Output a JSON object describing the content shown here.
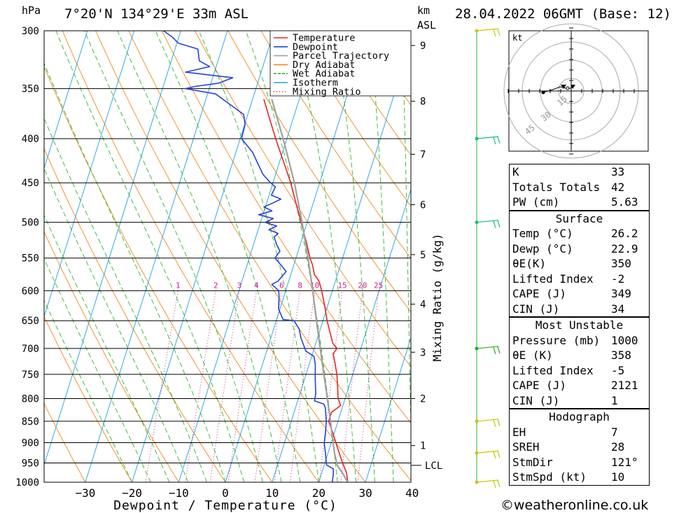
{
  "header": {
    "location": "7°20'N 134°29'E 33m ASL",
    "datetime": "28.04.2022 06GMT (Base: 12)",
    "pressure_unit": "hPa",
    "height_unit_km": "km",
    "height_unit_asl": "ASL"
  },
  "chart_data": {
    "type": "line",
    "subtype": "skew-t log-p",
    "xlabel": "Dewpoint / Temperature (°C)",
    "ylabel_right": "Mixing Ratio (g/kg)",
    "x_ticks": [
      -30,
      -20,
      -10,
      0,
      10,
      20,
      30,
      40
    ],
    "pressure_levels": [
      300,
      350,
      400,
      450,
      500,
      550,
      600,
      650,
      700,
      750,
      800,
      850,
      900,
      950,
      1000
    ],
    "height_ticks_km": [
      {
        "label": "1",
        "p": 907
      },
      {
        "label": "2",
        "p": 800
      },
      {
        "label": "3",
        "p": 707
      },
      {
        "label": "4",
        "p": 622
      },
      {
        "label": "5",
        "p": 545
      },
      {
        "label": "6",
        "p": 477
      },
      {
        "label": "7",
        "p": 417
      },
      {
        "label": "8",
        "p": 362
      },
      {
        "label": "9",
        "p": 312
      }
    ],
    "lcl_label": "LCL",
    "lcl_pressure": 956,
    "mixing_ratio_labels": [
      "1",
      "2",
      "3",
      "4",
      "6",
      "8",
      "10",
      "15",
      "20",
      "25"
    ],
    "mixing_ratio_values": [
      1,
      2,
      3,
      4,
      6,
      8,
      10,
      15,
      20,
      25
    ],
    "legend": [
      {
        "name": "Temperature",
        "color": "#ee2222",
        "style": "solid"
      },
      {
        "name": "Dewpoint",
        "color": "#2244dd",
        "style": "solid"
      },
      {
        "name": "Parcel Trajectory",
        "color": "#a0a0a0",
        "style": "solid"
      },
      {
        "name": "Dry Adiabat",
        "color": "#f08a1c",
        "style": "solid"
      },
      {
        "name": "Wet Adiabat",
        "color": "#2db82d",
        "style": "dashed"
      },
      {
        "name": "Isotherm",
        "color": "#1e9fe0",
        "style": "solid"
      },
      {
        "name": "Mixing Ratio",
        "color": "#d0208c",
        "style": "dotted"
      }
    ],
    "series": [
      {
        "name": "Temperature",
        "points": [
          [
            1000,
            26.2
          ],
          [
            975,
            25.3
          ],
          [
            950,
            23.8
          ],
          [
            925,
            22.4
          ],
          [
            900,
            21.0
          ],
          [
            875,
            19.6
          ],
          [
            850,
            18.0
          ],
          [
            830,
            18.0
          ],
          [
            815,
            19.5
          ],
          [
            800,
            18.5
          ],
          [
            775,
            17.6
          ],
          [
            750,
            16.6
          ],
          [
            725,
            15.3
          ],
          [
            710,
            14.4
          ],
          [
            700,
            14.9
          ],
          [
            690,
            13.6
          ],
          [
            675,
            12.6
          ],
          [
            650,
            10.9
          ],
          [
            625,
            9.4
          ],
          [
            600,
            7.7
          ],
          [
            585,
            6.5
          ],
          [
            575,
            5.1
          ],
          [
            560,
            4.0
          ],
          [
            550,
            3.0
          ],
          [
            530,
            1.4
          ],
          [
            500,
            -1.3
          ],
          [
            475,
            -3.7
          ],
          [
            450,
            -6.2
          ],
          [
            425,
            -9.2
          ],
          [
            400,
            -12.4
          ],
          [
            375,
            -15.6
          ],
          [
            360,
            -17.6
          ]
        ]
      },
      {
        "name": "Dewpoint",
        "points": [
          [
            1000,
            22.9
          ],
          [
            980,
            22.6
          ],
          [
            965,
            22.2
          ],
          [
            955,
            20.5
          ],
          [
            940,
            20.0
          ],
          [
            900,
            18.5
          ],
          [
            880,
            18.2
          ],
          [
            850,
            17.5
          ],
          [
            820,
            16.4
          ],
          [
            812,
            15.8
          ],
          [
            805,
            13.6
          ],
          [
            790,
            13.4
          ],
          [
            760,
            12.3
          ],
          [
            730,
            11.3
          ],
          [
            715,
            10.5
          ],
          [
            705,
            8.4
          ],
          [
            680,
            6.4
          ],
          [
            665,
            5.5
          ],
          [
            650,
            3.8
          ],
          [
            648,
            1.4
          ],
          [
            630,
            -0.3
          ],
          [
            610,
            -1.0
          ],
          [
            600,
            -1.5
          ],
          [
            590,
            -3.4
          ],
          [
            585,
            -2.3
          ],
          [
            570,
            -1.2
          ],
          [
            560,
            -2.8
          ],
          [
            550,
            -4.5
          ],
          [
            540,
            -3.9
          ],
          [
            530,
            -5.1
          ],
          [
            520,
            -6.1
          ],
          [
            515,
            -5.5
          ],
          [
            510,
            -7.7
          ],
          [
            505,
            -6.3
          ],
          [
            500,
            -9.0
          ],
          [
            495,
            -7.5
          ],
          [
            490,
            -10.9
          ],
          [
            485,
            -8.3
          ],
          [
            480,
            -10.3
          ],
          [
            475,
            -8.7
          ],
          [
            470,
            -7.2
          ],
          [
            465,
            -9.5
          ],
          [
            455,
            -9.2
          ],
          [
            450,
            -10.5
          ],
          [
            440,
            -12.7
          ],
          [
            425,
            -14.9
          ],
          [
            415,
            -16.4
          ],
          [
            400,
            -19.7
          ],
          [
            385,
            -19.9
          ],
          [
            375,
            -20.9
          ],
          [
            365,
            -24.5
          ],
          [
            355,
            -28.3
          ],
          [
            350,
            -35.1
          ],
          [
            348,
            -33.2
          ],
          [
            345,
            -28.4
          ],
          [
            340,
            -25.7
          ],
          [
            335,
            -36.2
          ],
          [
            330,
            -31.4
          ],
          [
            325,
            -34.0
          ],
          [
            315,
            -35.1
          ],
          [
            310,
            -39.7
          ],
          [
            305,
            -41.4
          ],
          [
            300,
            -43.7
          ]
        ]
      },
      {
        "name": "Parcel Trajectory",
        "points": [
          [
            1000,
            26.2
          ],
          [
            975,
            24.4
          ],
          [
            956,
            22.8
          ],
          [
            925,
            21.4
          ],
          [
            900,
            20.4
          ],
          [
            850,
            18.4
          ],
          [
            800,
            16.2
          ],
          [
            750,
            13.8
          ],
          [
            700,
            11.3
          ],
          [
            650,
            8.6
          ],
          [
            600,
            5.8
          ],
          [
            550,
            2.6
          ],
          [
            500,
            -1.1
          ],
          [
            450,
            -5.4
          ],
          [
            400,
            -10.8
          ],
          [
            360,
            -15.9
          ]
        ]
      }
    ],
    "wind_barbs": [
      {
        "p": 300,
        "color": "#c8c800"
      },
      {
        "p": 400,
        "color": "#10c080"
      },
      {
        "p": 500,
        "color": "#10c080"
      },
      {
        "p": 700,
        "color": "#20b020"
      },
      {
        "p": 850,
        "color": "#c8c800"
      },
      {
        "p": 925,
        "color": "#c8c800"
      },
      {
        "p": 1000,
        "color": "#c8c800"
      }
    ],
    "hodograph": {
      "unit_label": "kt",
      "ring_labels": [
        "15",
        "30",
        "45"
      ]
    }
  },
  "indices": {
    "general": [
      {
        "label": "K",
        "value": "33"
      },
      {
        "label": "Totals Totals",
        "value": "42"
      },
      {
        "label": "PW (cm)",
        "value": "5.63"
      }
    ],
    "surface": {
      "title": "Surface",
      "rows": [
        {
          "label": "Temp (°C)",
          "value": "26.2"
        },
        {
          "label": "Dewp (°C)",
          "value": "22.9"
        },
        {
          "label": "θE(K)",
          "value": "350"
        },
        {
          "label": "Lifted Index",
          "value": "-2"
        },
        {
          "label": "CAPE (J)",
          "value": "349"
        },
        {
          "label": "CIN (J)",
          "value": "34"
        }
      ]
    },
    "most_unstable": {
      "title": "Most Unstable",
      "rows": [
        {
          "label": "Pressure (mb)",
          "value": "1000"
        },
        {
          "label": "θE (K)",
          "value": "358"
        },
        {
          "label": "Lifted Index",
          "value": "-5"
        },
        {
          "label": "CAPE (J)",
          "value": "2121"
        },
        {
          "label": "CIN (J)",
          "value": "1"
        }
      ]
    },
    "hodograph": {
      "title": "Hodograph",
      "rows": [
        {
          "label": "EH",
          "value": "7"
        },
        {
          "label": "SREH",
          "value": "28"
        },
        {
          "label": "StmDir",
          "value": "121°"
        },
        {
          "label": "StmSpd (kt)",
          "value": "10"
        }
      ]
    }
  },
  "footer": {
    "copyright": "©weatheronline.co.uk"
  }
}
